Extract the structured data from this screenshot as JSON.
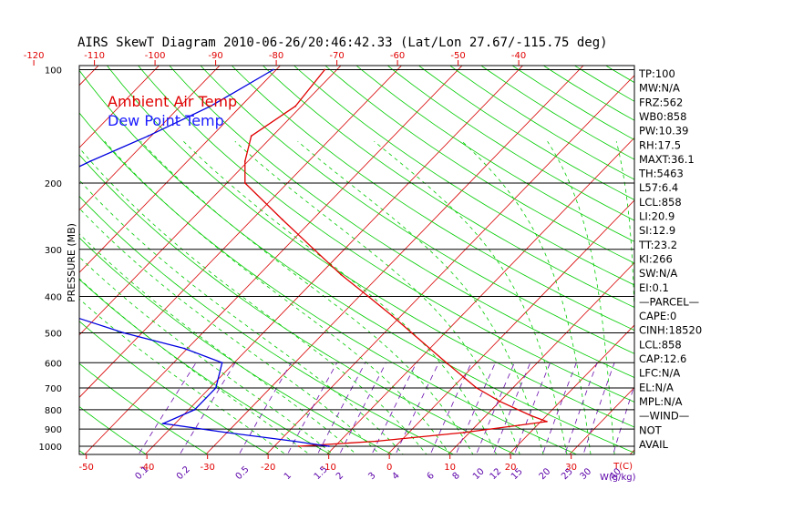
{
  "chart_data": {
    "type": "line",
    "title": "AIRS SkewT Diagram 2010-06-26/20:46:42.33 (Lat/Lon 27.67/-115.75 deg)",
    "ylabel": "PRESSURE (MB)",
    "y_scale": "log",
    "ylim": [
      1050,
      100
    ],
    "pressure_ticks": [
      100,
      200,
      300,
      400,
      500,
      600,
      700,
      800,
      900,
      1000
    ],
    "pressure_tick_labels": [
      "100",
      "200",
      "300",
      "400",
      "500",
      "600",
      "700",
      "800",
      "900",
      "1000"
    ],
    "top_temp_ticks": [
      -120,
      -110,
      -100,
      -90,
      -80,
      -70,
      -60,
      -50,
      -40
    ],
    "top_temp_labels": [
      "-120",
      "-110",
      "-100",
      "-90",
      "-80",
      "-70",
      "-60",
      "-50",
      "-40"
    ],
    "bottom_temp_ticks": [
      -50,
      -40,
      -30,
      -20,
      -10,
      0,
      10,
      20,
      30
    ],
    "bottom_temp_labels": [
      "-50",
      "-40",
      "-30",
      "-20",
      "-10",
      "0",
      "10",
      "20",
      "30"
    ],
    "bottom_temp_unit": "T(C)",
    "mixing_ratios": [
      0.1,
      0.2,
      0.5,
      1,
      1.5,
      2,
      3,
      4,
      6,
      8,
      10,
      12,
      15,
      20,
      25,
      30,
      40
    ],
    "mixing_ratio_labels": [
      "0.1",
      "0.2",
      "0.5",
      "1",
      "1.5",
      "2",
      "3",
      "4",
      "6",
      "8",
      "10",
      "12",
      "15",
      "20",
      "25",
      "30",
      "40"
    ],
    "mixing_ratio_unit": "W(g/kg)",
    "dry_adiabats_theta_k": [
      200,
      210,
      220,
      230,
      240,
      250,
      260,
      270,
      280,
      290,
      300,
      310,
      320,
      330,
      340,
      350,
      360,
      370,
      380,
      390,
      400,
      410,
      420,
      430,
      440,
      450,
      460,
      470,
      480,
      490
    ],
    "moist_adiabats_c": [
      -20,
      -16,
      -12,
      -8,
      -4,
      0,
      4,
      8,
      12,
      16,
      20,
      24,
      28,
      32,
      36,
      40
    ],
    "isotherms_c": [
      -180,
      -170,
      -160,
      -150,
      -140,
      -130,
      -120,
      -110,
      -100,
      -90,
      -80,
      -70,
      -60,
      -50,
      -40,
      -30,
      -20,
      -10,
      0,
      10,
      20,
      30,
      40
    ],
    "grid": true,
    "series": [
      {
        "name": "Ambient Air Temp",
        "color": "#e00000",
        "points": [
          {
            "p": 100,
            "t": -72.0
          },
          {
            "p": 125,
            "t": -71.0
          },
          {
            "p": 150,
            "t": -73.5
          },
          {
            "p": 175,
            "t": -70.5
          },
          {
            "p": 200,
            "t": -67.0
          },
          {
            "p": 250,
            "t": -55.0
          },
          {
            "p": 300,
            "t": -45.0
          },
          {
            "p": 350,
            "t": -36.5
          },
          {
            "p": 400,
            "t": -28.5
          },
          {
            "p": 450,
            "t": -21.5
          },
          {
            "p": 500,
            "t": -15.5
          },
          {
            "p": 600,
            "t": -5.0
          },
          {
            "p": 700,
            "t": 4.0
          },
          {
            "p": 760,
            "t": 10.0
          },
          {
            "p": 830,
            "t": 17.5
          },
          {
            "p": 860,
            "t": 21.0
          },
          {
            "p": 880,
            "t": 17.0
          },
          {
            "p": 920,
            "t": 9.0
          },
          {
            "p": 970,
            "t": -4.0
          },
          {
            "p": 1000,
            "t": -16.0
          }
        ]
      },
      {
        "name": "Dew Point Temp",
        "color": "#0000e0",
        "points": [
          {
            "p": 100,
            "t": -80.5
          },
          {
            "p": 125,
            "t": -85.0
          },
          {
            "p": 150,
            "t": -90.5
          },
          {
            "p": 175,
            "t": -96.0
          },
          {
            "p": 200,
            "t": -100.0
          },
          {
            "p": 250,
            "t": -105.0
          },
          {
            "p": 300,
            "t": -108.5
          },
          {
            "p": 350,
            "t": -99.5
          },
          {
            "p": 400,
            "t": -88.5
          },
          {
            "p": 450,
            "t": -74.5
          },
          {
            "p": 500,
            "t": -63.0
          },
          {
            "p": 550,
            "t": -50.5
          },
          {
            "p": 600,
            "t": -42.0
          },
          {
            "p": 700,
            "t": -39.0
          },
          {
            "p": 800,
            "t": -39.0
          },
          {
            "p": 870,
            "t": -42.0
          },
          {
            "p": 920,
            "t": -30.0
          },
          {
            "p": 970,
            "t": -17.5
          },
          {
            "p": 1000,
            "t": -11.0
          }
        ]
      }
    ],
    "legend": [
      "Ambient Air Temp",
      "Dew Point Temp"
    ],
    "legend_position": "top-left",
    "colors": {
      "isotherm": "#d80000",
      "dry_adiabat": "#00cc00",
      "moist_adiabat": "#00cc00",
      "mixing_ratio": "#6a0dad",
      "isobar": "#000000"
    },
    "indices": [
      "TP:100",
      "MW:N/A",
      "FRZ:562",
      "WB0:858",
      "PW:10.39",
      "RH:17.5",
      "MAXT:36.1",
      "TH:5463",
      "L57:6.4",
      "LCL:858",
      "LI:20.9",
      "SI:12.9",
      "TT:23.2",
      "KI:266",
      "SW:N/A",
      "EI:0.1",
      "—PARCEL—",
      "CAPE:0",
      "CINH:18520",
      "LCL:858",
      "CAP:12.6",
      "LFC:N/A",
      "EL:N/A",
      "MPL:N/A",
      "—WIND—",
      "NOT",
      "AVAIL"
    ]
  }
}
